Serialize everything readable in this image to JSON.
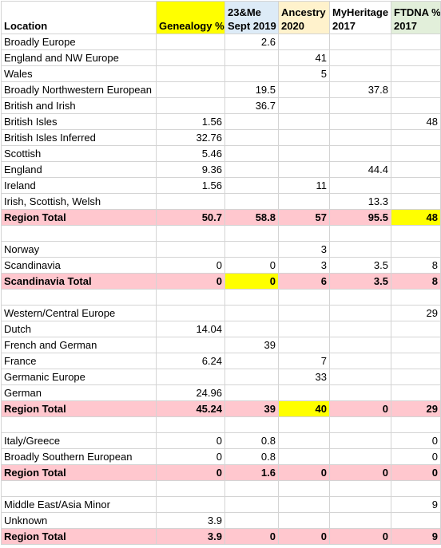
{
  "headers": {
    "location": "Location",
    "genealogy": "Genealogy %",
    "me23_l1": "23&Me",
    "me23_l2": "Sept 2019",
    "ancestry_l1": "Ancestry",
    "ancestry_l2": "2020",
    "myheritage_l1": "MyHeritage",
    "myheritage_l2": "2017",
    "ftdna_l1": "FTDNA %",
    "ftdna_l2": "2017"
  },
  "colors": {
    "highlight_yellow": "#ffff00",
    "total_row_pink": "#ffc7ce",
    "header_23me_blue": "#ddebf7",
    "header_ancestry_cream": "#fff2cc",
    "header_ftdna_green": "#e2efda"
  },
  "rows": [
    {
      "label": "Broadly Europe",
      "v": [
        "",
        "2.6",
        "",
        "",
        ""
      ]
    },
    {
      "label": "England and NW Europe",
      "v": [
        "",
        "",
        "41",
        "",
        ""
      ]
    },
    {
      "label": "Wales",
      "v": [
        "",
        "",
        "5",
        "",
        ""
      ]
    },
    {
      "label": "Broadly Northwestern European",
      "v": [
        "",
        "19.5",
        "",
        "37.8",
        ""
      ]
    },
    {
      "label": "British and Irish",
      "v": [
        "",
        "36.7",
        "",
        "",
        ""
      ]
    },
    {
      "label": "British Isles",
      "v": [
        "1.56",
        "",
        "",
        "",
        "48"
      ]
    },
    {
      "label": "British Isles Inferred",
      "v": [
        "32.76",
        "",
        "",
        "",
        ""
      ]
    },
    {
      "label": "Scottish",
      "v": [
        "5.46",
        "",
        "",
        "",
        ""
      ]
    },
    {
      "label": "England",
      "v": [
        "9.36",
        "",
        "",
        "44.4",
        ""
      ]
    },
    {
      "label": "Ireland",
      "v": [
        "1.56",
        "",
        "11",
        "",
        ""
      ]
    },
    {
      "label": "Irish, Scottish, Welsh",
      "v": [
        "",
        "",
        "",
        "13.3",
        ""
      ]
    },
    {
      "label": "Region Total",
      "v": [
        "50.7",
        "58.8",
        "57",
        "95.5",
        "48"
      ]
    },
    {
      "label": "",
      "v": [
        "",
        "",
        "",
        "",
        ""
      ]
    },
    {
      "label": "Norway",
      "v": [
        "",
        "",
        "3",
        "",
        ""
      ]
    },
    {
      "label": "Scandinavia",
      "v": [
        "0",
        "0",
        "3",
        "3.5",
        "8"
      ]
    },
    {
      "label": "Scandinavia Total",
      "v": [
        "0",
        "0",
        "6",
        "3.5",
        "8"
      ]
    },
    {
      "label": "",
      "v": [
        "",
        "",
        "",
        "",
        ""
      ]
    },
    {
      "label": "Western/Central Europe",
      "v": [
        "",
        "",
        "",
        "",
        "29"
      ]
    },
    {
      "label": "Dutch",
      "v": [
        "14.04",
        "",
        "",
        "",
        ""
      ]
    },
    {
      "label": "French and German",
      "v": [
        "",
        "39",
        "",
        "",
        ""
      ]
    },
    {
      "label": "France",
      "v": [
        "6.24",
        "",
        "7",
        "",
        ""
      ]
    },
    {
      "label": "Germanic Europe",
      "v": [
        "",
        "",
        "33",
        "",
        ""
      ]
    },
    {
      "label": "German",
      "v": [
        "24.96",
        "",
        "",
        "",
        ""
      ]
    },
    {
      "label": "Region Total",
      "v": [
        "45.24",
        "39",
        "40",
        "0",
        "29"
      ]
    },
    {
      "label": "",
      "v": [
        "",
        "",
        "",
        "",
        ""
      ]
    },
    {
      "label": "Italy/Greece",
      "v": [
        "0",
        "0.8",
        "",
        "",
        "0"
      ]
    },
    {
      "label": "Broadly Southern European",
      "v": [
        "0",
        "0.8",
        "",
        "",
        "0"
      ]
    },
    {
      "label": "Region Total",
      "v": [
        "0",
        "1.6",
        "0",
        "0",
        "0"
      ]
    },
    {
      "label": "",
      "v": [
        "",
        "",
        "",
        "",
        ""
      ]
    },
    {
      "label": "Middle East/Asia Minor",
      "v": [
        "",
        "",
        "",
        "",
        "9"
      ]
    },
    {
      "label": "Unknown",
      "v": [
        "3.9",
        "",
        "",
        "",
        ""
      ]
    },
    {
      "label": "Region Total",
      "v": [
        "3.9",
        "0",
        "0",
        "0",
        "9"
      ]
    }
  ]
}
